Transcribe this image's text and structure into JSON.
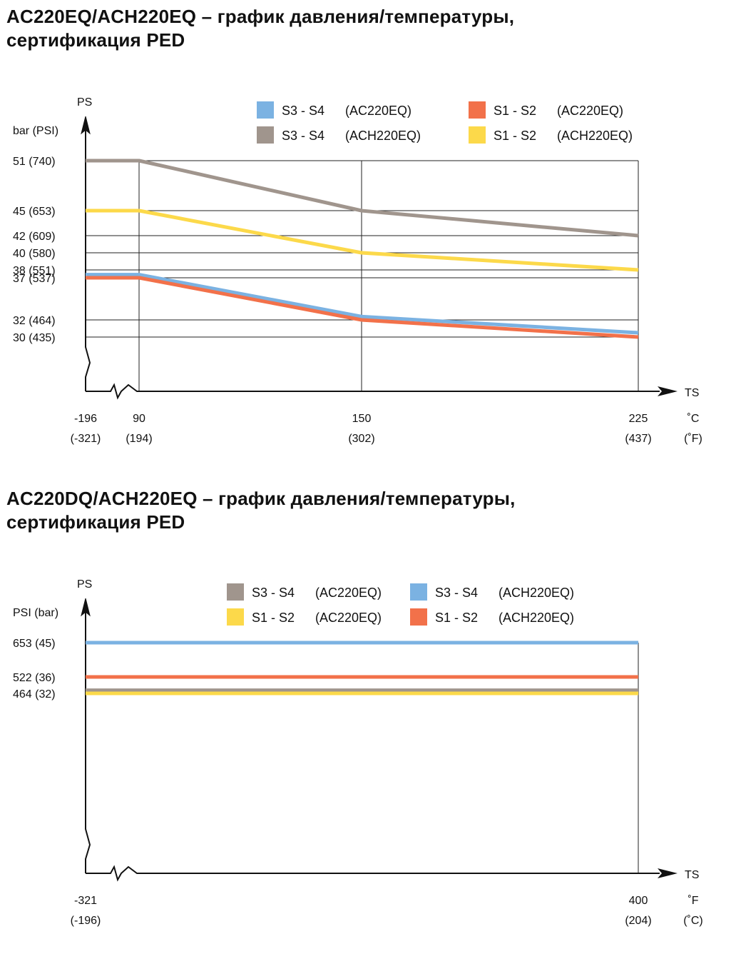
{
  "chart_data": [
    {
      "type": "line",
      "title": [
        "AC220EQ/ACH220EQ – график давления/температуры,",
        "сертификация PED"
      ],
      "y_name": "PS",
      "y_unit": "bar (PSI)",
      "x_name": "TS",
      "x_unit_top": "˚C",
      "x_unit_bottom": "(˚F)",
      "x_ticks": [
        {
          "value": -196,
          "top": "-196",
          "bottom": "(-321)"
        },
        {
          "value": 90,
          "top": "90",
          "bottom": "(194)"
        },
        {
          "value": 150,
          "top": "150",
          "bottom": "(302)"
        },
        {
          "value": 225,
          "top": "225",
          "bottom": "(437)"
        }
      ],
      "y_ticks": [
        {
          "value": 51,
          "label": "51  (740)"
        },
        {
          "value": 45,
          "label": "45  (653)"
        },
        {
          "value": 42,
          "label": "42  (609)"
        },
        {
          "value": 40,
          "label": "40  (580)"
        },
        {
          "value": 38,
          "label": "38  (551)"
        },
        {
          "value": 37,
          "label": "37  (537)"
        },
        {
          "value": 32,
          "label": "32  (464)"
        },
        {
          "value": 30,
          "label": "30  (435)"
        }
      ],
      "grid": true,
      "axis_break": true,
      "legend_position": "top",
      "series": [
        {
          "name": "S3 - S4",
          "model": "(ACH220EQ)",
          "color": "#a0958d",
          "points": [
            [
              -196,
              51
            ],
            [
              90,
              51
            ],
            [
              150,
              45
            ],
            [
              225,
              42
            ]
          ]
        },
        {
          "name": "S1 - S2",
          "model": "(ACH220EQ)",
          "color": "#fcd94a",
          "points": [
            [
              -196,
              45
            ],
            [
              90,
              45
            ],
            [
              150,
              40
            ],
            [
              225,
              38
            ]
          ]
        },
        {
          "name": "S3 - S4",
          "model": "(AC220EQ)",
          "color": "#7bb2e2",
          "points": [
            [
              -196,
              37.4
            ],
            [
              90,
              37.4
            ],
            [
              150,
              32.4
            ],
            [
              225,
              30.5
            ]
          ]
        },
        {
          "name": "S1 - S2",
          "model": "(AC220EQ)",
          "color": "#f2714a",
          "points": [
            [
              -196,
              37
            ],
            [
              90,
              37
            ],
            [
              150,
              32
            ],
            [
              225,
              30
            ]
          ]
        }
      ],
      "legend_order": [
        2,
        0,
        3,
        1
      ]
    },
    {
      "type": "line",
      "title": [
        "AC220DQ/ACH220EQ – график давления/температуры,",
        "сертификация PED"
      ],
      "y_name": "PS",
      "y_unit": "PSI  (bar)",
      "x_name": "TS",
      "x_unit_top": "˚F",
      "x_unit_bottom": "(˚C)",
      "x_ticks": [
        {
          "value": -321,
          "top": "-321",
          "bottom": "(-196)"
        },
        {
          "value": 400,
          "top": "400",
          "bottom": "(204)"
        }
      ],
      "y_ticks": [
        {
          "value": 653,
          "label": "653 (45)"
        },
        {
          "value": 522,
          "label": "522 (36)"
        },
        {
          "value": 464,
          "label": "464 (32)"
        }
      ],
      "grid": false,
      "axis_break": true,
      "legend_position": "top",
      "series": [
        {
          "name": "S3 - S4",
          "model": "(AC220EQ)",
          "color": "#a0958d",
          "points": [
            [
              -321,
              475
            ],
            [
              400,
              475
            ]
          ]
        },
        {
          "name": "S1 - S2",
          "model": "(AC220EQ)",
          "color": "#fcd94a",
          "points": [
            [
              -321,
              464
            ],
            [
              400,
              464
            ]
          ]
        },
        {
          "name": "S3 - S4",
          "model": "(ACH220EQ)",
          "color": "#7bb2e2",
          "points": [
            [
              -321,
              653
            ],
            [
              400,
              653
            ]
          ]
        },
        {
          "name": "S1 - S2",
          "model": "(ACH220EQ)",
          "color": "#f2714a",
          "points": [
            [
              -321,
              522
            ],
            [
              400,
              522
            ]
          ]
        }
      ],
      "legend_order": [
        0,
        1,
        2,
        3
      ]
    }
  ]
}
